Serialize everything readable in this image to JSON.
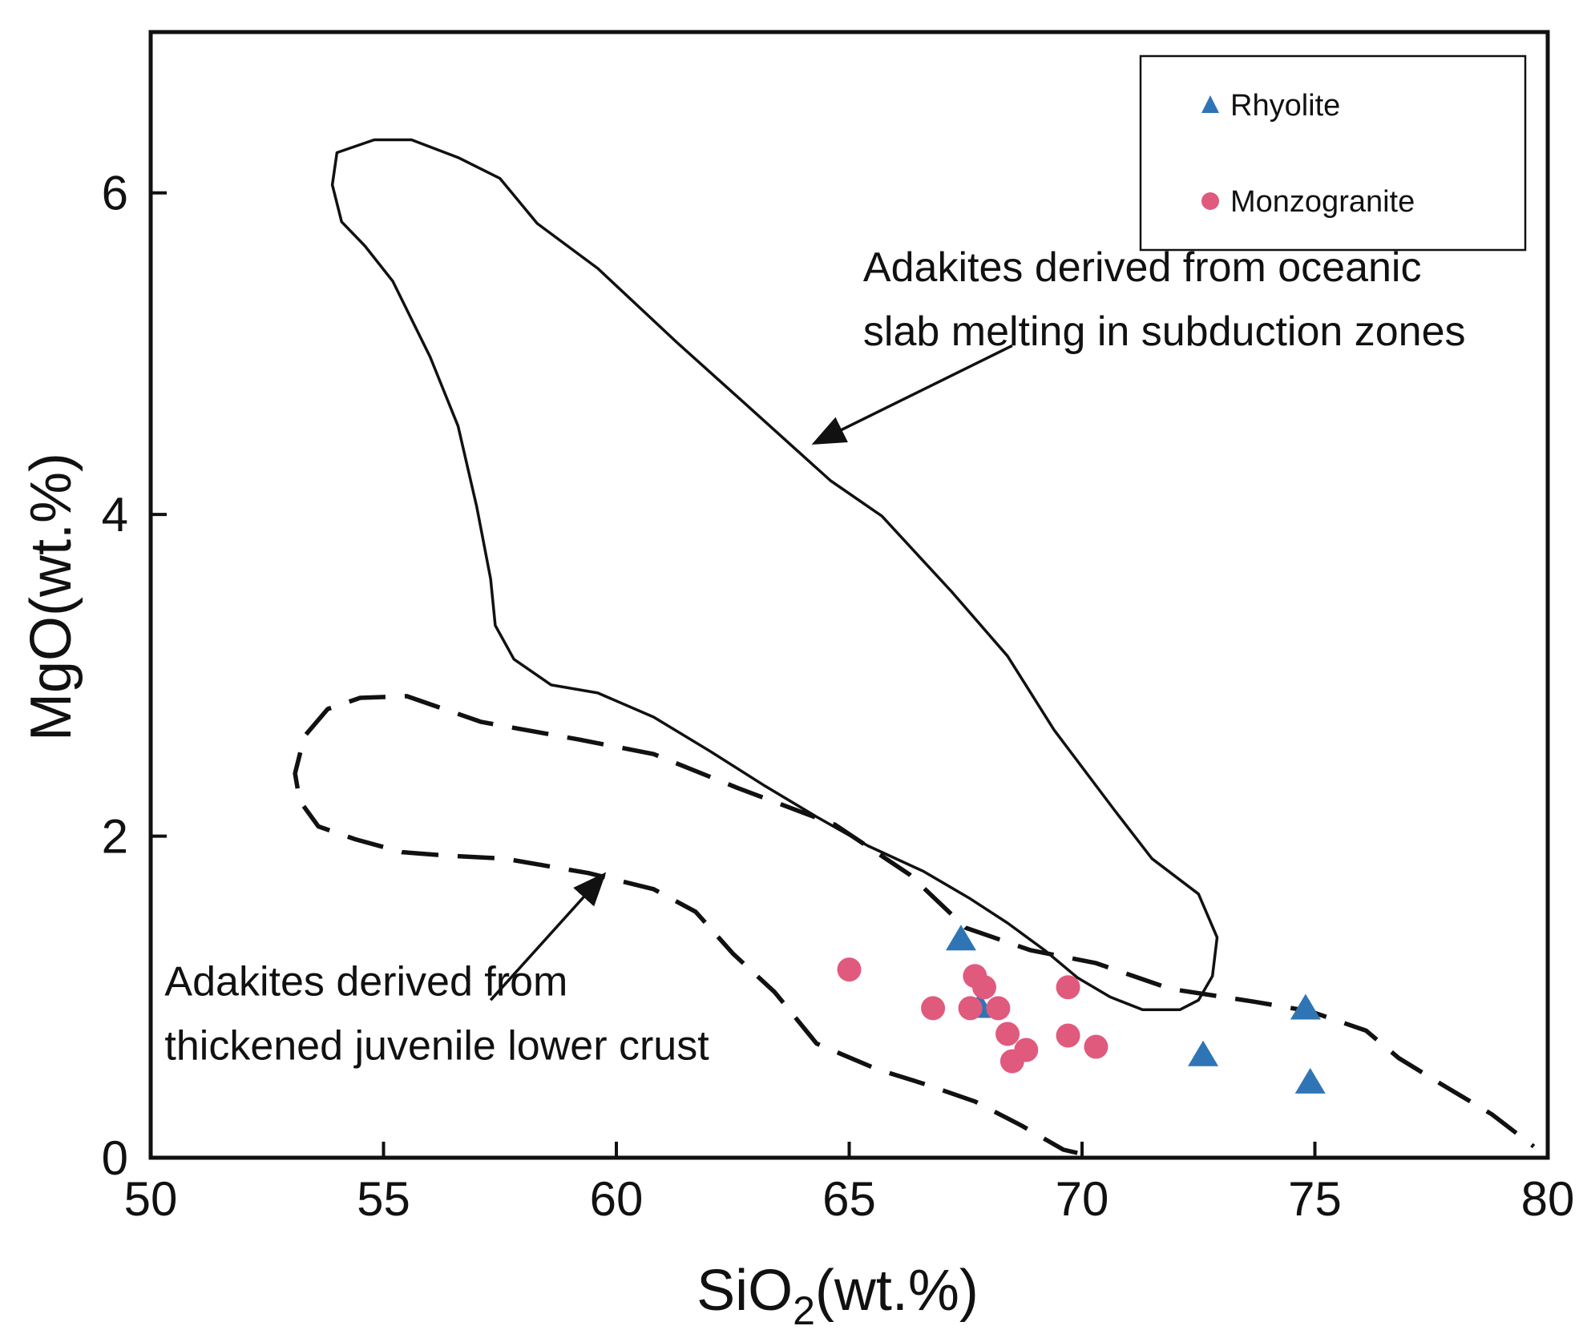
{
  "chart_data": {
    "type": "scatter",
    "title": "",
    "xlabel_main": "SiO",
    "xlabel_sub": "2",
    "xlabel_tail": "(wt.%)",
    "ylabel": "MgO(wt.%)",
    "xlim": [
      50,
      80
    ],
    "ylim": [
      0,
      7
    ],
    "xticks": [
      "50",
      "55",
      "60",
      "65",
      "70",
      "75",
      "80"
    ],
    "yticks": [
      "0",
      "2",
      "4",
      "6"
    ],
    "grid": false,
    "legend_position": "top-right",
    "series": [
      {
        "name": "Rhyolite",
        "marker": "triangle",
        "color": "#2f75b5",
        "points": [
          {
            "x": 67.4,
            "y": 1.35
          },
          {
            "x": 67.8,
            "y": 0.93
          },
          {
            "x": 72.6,
            "y": 0.63
          },
          {
            "x": 74.8,
            "y": 0.92
          },
          {
            "x": 74.9,
            "y": 0.46
          }
        ]
      },
      {
        "name": "Monzogranite",
        "marker": "circle",
        "color": "#e05a7e",
        "points": [
          {
            "x": 65.0,
            "y": 1.17
          },
          {
            "x": 66.8,
            "y": 0.93
          },
          {
            "x": 67.6,
            "y": 0.93
          },
          {
            "x": 67.7,
            "y": 1.13
          },
          {
            "x": 67.9,
            "y": 1.06
          },
          {
            "x": 68.2,
            "y": 0.93
          },
          {
            "x": 68.4,
            "y": 0.77
          },
          {
            "x": 68.5,
            "y": 0.6
          },
          {
            "x": 68.8,
            "y": 0.67
          },
          {
            "x": 69.7,
            "y": 1.06
          },
          {
            "x": 69.7,
            "y": 0.76
          },
          {
            "x": 70.3,
            "y": 0.69
          }
        ]
      }
    ],
    "regions": [
      {
        "name": "oceanic-slab-field",
        "style": "solid",
        "closed": true,
        "path": [
          [
            54.1,
            5.82
          ],
          [
            53.9,
            6.05
          ],
          [
            54.0,
            6.25
          ],
          [
            54.8,
            6.33
          ],
          [
            55.6,
            6.33
          ],
          [
            56.6,
            6.22
          ],
          [
            57.5,
            6.09
          ],
          [
            58.3,
            5.81
          ],
          [
            59.6,
            5.53
          ],
          [
            61.3,
            5.07
          ],
          [
            62.8,
            4.68
          ],
          [
            64.6,
            4.21
          ],
          [
            65.7,
            3.99
          ],
          [
            67.2,
            3.52
          ],
          [
            68.4,
            3.12
          ],
          [
            69.4,
            2.66
          ],
          [
            70.7,
            2.16
          ],
          [
            71.5,
            1.86
          ],
          [
            72.5,
            1.64
          ],
          [
            72.9,
            1.37
          ],
          [
            72.8,
            1.13
          ],
          [
            72.5,
            0.98
          ],
          [
            72.1,
            0.92
          ],
          [
            71.3,
            0.92
          ],
          [
            70.6,
            1.0
          ],
          [
            69.9,
            1.12
          ],
          [
            69.2,
            1.29
          ],
          [
            68.4,
            1.46
          ],
          [
            67.6,
            1.61
          ],
          [
            66.6,
            1.78
          ],
          [
            65.4,
            1.94
          ],
          [
            64.3,
            2.12
          ],
          [
            63.2,
            2.31
          ],
          [
            62.0,
            2.53
          ],
          [
            60.8,
            2.74
          ],
          [
            59.6,
            2.89
          ],
          [
            58.6,
            2.94
          ],
          [
            57.8,
            3.1
          ],
          [
            57.4,
            3.31
          ],
          [
            57.3,
            3.6
          ],
          [
            57.0,
            4.05
          ],
          [
            56.6,
            4.55
          ],
          [
            56.0,
            4.98
          ],
          [
            55.2,
            5.45
          ],
          [
            54.6,
            5.67
          ],
          [
            54.1,
            5.82
          ]
        ]
      },
      {
        "name": "juvenile-crust-field",
        "style": "dashed",
        "closed": false,
        "path": [
          [
            69.9,
            0.03
          ],
          [
            69.6,
            0.05
          ],
          [
            68.7,
            0.2
          ],
          [
            67.7,
            0.35
          ],
          [
            66.6,
            0.46
          ],
          [
            65.6,
            0.55
          ],
          [
            64.3,
            0.71
          ],
          [
            63.4,
            1.03
          ],
          [
            62.5,
            1.27
          ],
          [
            61.7,
            1.53
          ],
          [
            60.8,
            1.67
          ],
          [
            59.4,
            1.77
          ],
          [
            57.6,
            1.86
          ],
          [
            56.3,
            1.88
          ],
          [
            55.4,
            1.9
          ],
          [
            54.4,
            1.98
          ],
          [
            53.6,
            2.06
          ],
          [
            53.2,
            2.22
          ],
          [
            53.1,
            2.39
          ],
          [
            53.3,
            2.62
          ],
          [
            53.8,
            2.79
          ],
          [
            54.5,
            2.86
          ],
          [
            55.5,
            2.87
          ],
          [
            57.1,
            2.71
          ],
          [
            59.2,
            2.6
          ],
          [
            60.8,
            2.51
          ],
          [
            62.6,
            2.3
          ],
          [
            64.7,
            2.07
          ],
          [
            66.3,
            1.76
          ],
          [
            67.5,
            1.43
          ],
          [
            68.9,
            1.29
          ],
          [
            70.3,
            1.21
          ],
          [
            71.9,
            1.05
          ],
          [
            73.7,
            0.97
          ],
          [
            74.9,
            0.91
          ],
          [
            76.1,
            0.79
          ],
          [
            76.8,
            0.62
          ],
          [
            77.7,
            0.46
          ],
          [
            78.8,
            0.27
          ],
          [
            79.7,
            0.07
          ]
        ]
      }
    ],
    "annotations": [
      {
        "lines": [
          "Adakites derived from oceanic",
          "slab melting in subduction zones"
        ],
        "arrow_from": [
          68.5,
          5.05
        ],
        "arrow_to": [
          64.3,
          4.45
        ]
      },
      {
        "lines": [
          "Adakites derived from",
          "thickened juvenile lower crust"
        ],
        "arrow_from": [
          57.3,
          0.98
        ],
        "arrow_to": [
          59.7,
          1.75
        ]
      }
    ]
  }
}
